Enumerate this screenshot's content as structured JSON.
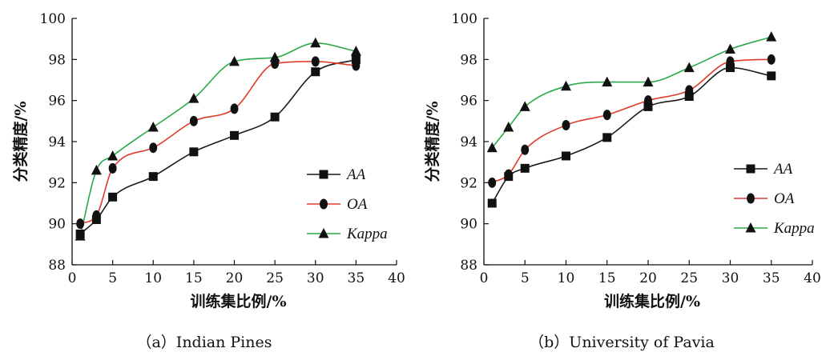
{
  "chart_data": [
    {
      "type": "line",
      "caption": "（a）Indian Pines",
      "xlabel": "训练集比例/%",
      "ylabel": "分类精度/%",
      "xlim": [
        0,
        40
      ],
      "ylim": [
        88,
        100
      ],
      "xticks": [
        0,
        5,
        10,
        15,
        20,
        25,
        30,
        35,
        40
      ],
      "yticks": [
        88,
        90,
        92,
        94,
        96,
        98,
        100
      ],
      "grid": false,
      "legend_position": "right-middle",
      "x": [
        1,
        3,
        5,
        10,
        15,
        20,
        25,
        30,
        35
      ],
      "series": [
        {
          "name": "AA",
          "color": "#1a1a1a",
          "marker": "square",
          "values": [
            89.5,
            90.2,
            91.3,
            92.3,
            93.5,
            94.3,
            95.2,
            97.4,
            98.0
          ]
        },
        {
          "name": "OA",
          "color": "#e03a2a",
          "marker": "circle",
          "values": [
            90.0,
            90.4,
            92.7,
            93.7,
            95.0,
            95.6,
            97.8,
            97.9,
            97.7
          ]
        },
        {
          "name": "Kappa",
          "color": "#2aaa4a",
          "marker": "triangle",
          "values": [
            89.4,
            92.6,
            93.3,
            94.7,
            96.1,
            97.9,
            98.1,
            98.8,
            98.4
          ]
        }
      ]
    },
    {
      "type": "line",
      "caption": "（b）University of Pavia",
      "xlabel": "训练集比例/%",
      "ylabel": "分类精度/%",
      "xlim": [
        0,
        40
      ],
      "ylim": [
        88,
        100
      ],
      "xticks": [
        0,
        5,
        10,
        15,
        20,
        25,
        30,
        35,
        40
      ],
      "yticks": [
        88,
        90,
        92,
        94,
        96,
        98,
        100
      ],
      "grid": false,
      "legend_position": "right-middle",
      "x": [
        1,
        3,
        5,
        10,
        15,
        20,
        25,
        30,
        35
      ],
      "series": [
        {
          "name": "AA",
          "color": "#1a1a1a",
          "marker": "square",
          "values": [
            91.0,
            92.3,
            92.7,
            93.3,
            94.2,
            95.7,
            96.2,
            97.6,
            97.2
          ]
        },
        {
          "name": "OA",
          "color": "#e03a2a",
          "marker": "circle",
          "values": [
            92.0,
            92.4,
            93.6,
            94.8,
            95.3,
            96.0,
            96.5,
            97.9,
            98.0
          ]
        },
        {
          "name": "Kappa",
          "color": "#2aaa4a",
          "marker": "triangle",
          "values": [
            93.7,
            94.7,
            95.7,
            96.7,
            96.9,
            96.9,
            97.6,
            98.5,
            99.1
          ]
        }
      ]
    }
  ]
}
